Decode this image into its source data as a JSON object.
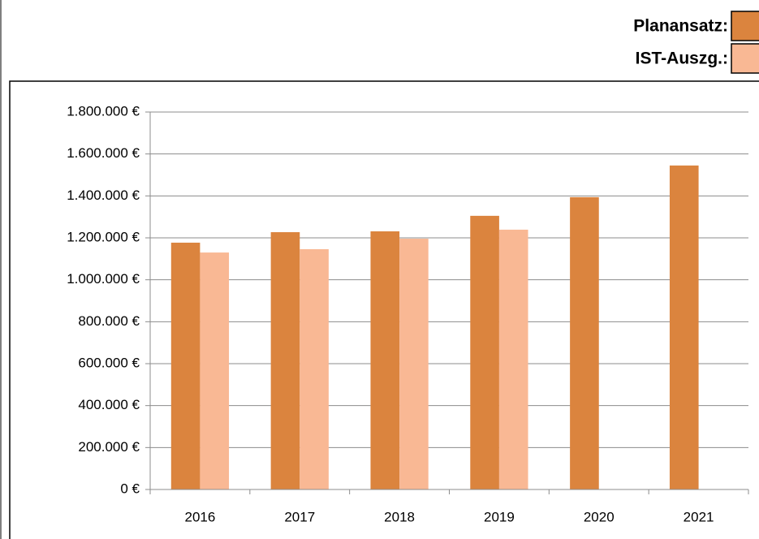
{
  "chart_data": {
    "type": "bar",
    "categories": [
      "2016",
      "2017",
      "2018",
      "2019",
      "2020",
      "2021"
    ],
    "series": [
      {
        "name": "Planansatz:",
        "color": "#db843e",
        "values": [
          1177000,
          1227000,
          1231000,
          1305000,
          1394000,
          1545000
        ]
      },
      {
        "name": "IST-Auszg.:",
        "color": "#f9b894",
        "values": [
          1130000,
          1146000,
          1196000,
          1239000,
          null,
          null
        ]
      }
    ],
    "ylim": [
      0,
      1800000
    ],
    "yticks": [
      {
        "value": 0,
        "label": "0 €"
      },
      {
        "value": 200000,
        "label": "200.000 €"
      },
      {
        "value": 400000,
        "label": "400.000 €"
      },
      {
        "value": 600000,
        "label": "600.000 €"
      },
      {
        "value": 800000,
        "label": "800.000 €"
      },
      {
        "value": 1000000,
        "label": "1.000.000 €"
      },
      {
        "value": 1200000,
        "label": "1.200.000 €"
      },
      {
        "value": 1400000,
        "label": "1.400.000 €"
      },
      {
        "value": 1600000,
        "label": "1.600.000 €"
      },
      {
        "value": 1800000,
        "label": "1.800.000 €"
      }
    ],
    "grid": true,
    "legend": "top-right"
  }
}
